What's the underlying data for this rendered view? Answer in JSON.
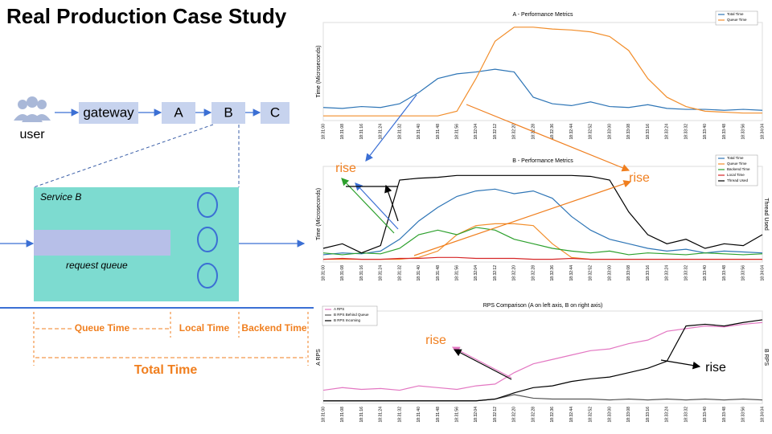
{
  "title": "Real Production Case Study",
  "diagram": {
    "nodes": [
      "user",
      "gateway",
      "A",
      "B",
      "C"
    ],
    "service": "Service B",
    "queue": "request queue",
    "segments": [
      "Queue Time",
      "Local Time",
      "Backend Time"
    ],
    "total": "Total Time"
  },
  "chart_data": [
    {
      "type": "line",
      "title": "A - Performance Metrics",
      "ylabel": "Time (Microseconds)",
      "ylim": [
        0,
        105
      ],
      "categories": [
        "18:31:00",
        "18:31:08",
        "18:31:16",
        "18:31:24",
        "18:31:32",
        "18:31:40",
        "18:31:48",
        "18:31:56",
        "18:32:04",
        "18:32:12",
        "18:32:20",
        "18:32:28",
        "18:32:36",
        "18:32:44",
        "18:32:52",
        "18:33:00",
        "18:33:08",
        "18:33:16",
        "18:33:24",
        "18:33:32",
        "18:33:40",
        "18:33:48",
        "18:33:56",
        "18:34:04"
      ],
      "series": [
        {
          "name": "Total Time",
          "color": "#2e75b6",
          "values": [
            14,
            13,
            15,
            14,
            18,
            30,
            45,
            50,
            52,
            55,
            52,
            25,
            18,
            16,
            20,
            15,
            14,
            17,
            13,
            12,
            12,
            11,
            12,
            11
          ]
        },
        {
          "name": "Queue Time",
          "color": "#f28e2b",
          "values": [
            5,
            5,
            5,
            5,
            5,
            5,
            5,
            10,
            45,
            85,
            100,
            100,
            98,
            97,
            95,
            90,
            75,
            45,
            25,
            15,
            10,
            9,
            8,
            8
          ]
        }
      ]
    },
    {
      "type": "line",
      "title": "B - Performance Metrics",
      "ylabel": "Time (Microseconds)",
      "y2label": "Thread Used",
      "ylim": [
        0,
        105
      ],
      "y2lim": [
        0,
        105
      ],
      "categories": [
        "18:31:00",
        "18:31:08",
        "18:31:16",
        "18:31:24",
        "18:31:32",
        "18:31:40",
        "18:31:48",
        "18:31:56",
        "18:32:04",
        "18:32:12",
        "18:32:20",
        "18:32:28",
        "18:32:36",
        "18:32:44",
        "18:32:52",
        "18:33:00",
        "18:33:08",
        "18:33:16",
        "18:33:24",
        "18:33:32",
        "18:33:40",
        "18:33:48",
        "18:33:56",
        "18:34:04"
      ],
      "series": [
        {
          "name": "Total Time",
          "color": "#2e75b6",
          "values": [
            8,
            10,
            9,
            12,
            25,
            45,
            60,
            72,
            78,
            80,
            75,
            78,
            70,
            50,
            35,
            25,
            20,
            15,
            12,
            14,
            10,
            12,
            11,
            10
          ]
        },
        {
          "name": "Queue Time",
          "color": "#f28e2b",
          "values": [
            3,
            3,
            3,
            3,
            3,
            5,
            12,
            30,
            40,
            42,
            42,
            40,
            20,
            5,
            3,
            3,
            3,
            3,
            3,
            3,
            3,
            3,
            3,
            3
          ]
        },
        {
          "name": "Backend Time",
          "color": "#2ca02c",
          "values": [
            10,
            8,
            10,
            9,
            15,
            30,
            35,
            30,
            38,
            35,
            25,
            20,
            15,
            12,
            10,
            12,
            8,
            10,
            9,
            8,
            10,
            9,
            8,
            9
          ]
        },
        {
          "name": "Local Time",
          "color": "#d62728",
          "values": [
            3,
            4,
            3,
            3,
            4,
            4,
            5,
            5,
            4,
            4,
            4,
            3,
            3,
            4,
            3,
            3,
            3,
            3,
            3,
            3,
            3,
            3,
            3,
            3
          ]
        },
        {
          "name": "Thread Used",
          "color": "#000000",
          "axis": "y2",
          "values": [
            15,
            20,
            10,
            18,
            90,
            92,
            93,
            95,
            95,
            95,
            95,
            95,
            95,
            95,
            94,
            90,
            55,
            30,
            20,
            25,
            15,
            20,
            18,
            30
          ]
        }
      ],
      "annotations": [
        "rise",
        "rise"
      ]
    },
    {
      "type": "line",
      "title": "RPS Comparison (A on left axis, B on right axis)",
      "ylabel": "A RPS",
      "y2label": "B RPS",
      "ylim": [
        0,
        105
      ],
      "y2lim": [
        0,
        105
      ],
      "categories": [
        "18:31:00",
        "18:31:08",
        "18:31:16",
        "18:31:24",
        "18:31:32",
        "18:31:40",
        "18:31:48",
        "18:31:56",
        "18:32:04",
        "18:32:12",
        "18:32:20",
        "18:32:28",
        "18:32:36",
        "18:32:44",
        "18:32:52",
        "18:33:00",
        "18:33:08",
        "18:33:16",
        "18:33:24",
        "18:33:32",
        "18:33:40",
        "18:33:48",
        "18:33:56",
        "18:34:04"
      ],
      "series": [
        {
          "name": "A RPS",
          "color": "#e377c2",
          "values": [
            15,
            18,
            16,
            17,
            15,
            20,
            18,
            16,
            20,
            22,
            35,
            45,
            50,
            55,
            60,
            62,
            68,
            72,
            82,
            85,
            88,
            87,
            90,
            92
          ]
        },
        {
          "name": "B RPS Behind Queue",
          "color": "#555555",
          "axis": "y2",
          "values": [
            3,
            3,
            3,
            3,
            3,
            3,
            3,
            3,
            3,
            5,
            10,
            6,
            5,
            5,
            5,
            4,
            5,
            4,
            5,
            4,
            5,
            4,
            5,
            4
          ]
        },
        {
          "name": "B RPS Incoming",
          "color": "#000000",
          "axis": "y2",
          "values": [
            3,
            3,
            3,
            3,
            3,
            3,
            3,
            3,
            3,
            5,
            12,
            18,
            20,
            25,
            28,
            30,
            35,
            40,
            48,
            88,
            90,
            88,
            92,
            95
          ]
        }
      ],
      "annotations": [
        "rise",
        "rise"
      ]
    }
  ]
}
